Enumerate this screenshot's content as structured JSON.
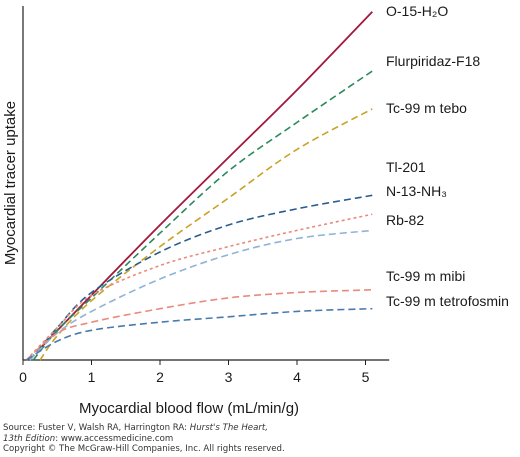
{
  "chart_data": {
    "type": "line",
    "title": "",
    "xlabel": "Myocardial blood flow (mL/min/g)",
    "ylabel": "Myocardial tracer uptake",
    "xlim": [
      0,
      5.2
    ],
    "xticks": [
      "0",
      "1",
      "2",
      "3",
      "4",
      "5"
    ],
    "grid": false,
    "legend": "inline labels at right end of each curve",
    "series": [
      {
        "name": "O-15-H₂O",
        "color": "#a3183c",
        "dash": "solid",
        "x": [
          0.2,
          1,
          2,
          3,
          4,
          5.1
        ],
        "y": [
          0.03,
          0.24,
          0.5,
          0.75,
          1.0,
          1.29
        ]
      },
      {
        "name": "Flurpiridaz-F18",
        "color": "#2b8a5a",
        "dash": "dashed",
        "x": [
          0.15,
          0.5,
          1,
          2,
          3,
          4,
          5.1
        ],
        "y": [
          0.0,
          0.11,
          0.23,
          0.47,
          0.7,
          0.88,
          1.07
        ]
      },
      {
        "name": "Tc-99 m tebo",
        "color": "#c9a227",
        "dash": "dashed",
        "x": [
          0.25,
          0.5,
          1,
          2,
          3,
          4,
          5.1
        ],
        "y": [
          0.0,
          0.09,
          0.22,
          0.42,
          0.6,
          0.78,
          0.93
        ]
      },
      {
        "name": "Tl-201",
        "color": "#2a5d8f",
        "dash": "dashed",
        "x": [
          0.1,
          0.5,
          1,
          2,
          3,
          4,
          5.1
        ],
        "y": [
          0.0,
          0.12,
          0.25,
          0.4,
          0.5,
          0.56,
          0.61
        ]
      },
      {
        "name": "N-13-NH₃",
        "color": "#e88b7d",
        "dash": "dotted",
        "x": [
          0.05,
          0.5,
          1,
          2,
          3,
          4,
          5.1
        ],
        "y": [
          0.0,
          0.12,
          0.24,
          0.35,
          0.42,
          0.48,
          0.54
        ]
      },
      {
        "name": "Rb-82",
        "color": "#8fb3d9",
        "dash": "dashed",
        "x": [
          0.1,
          0.5,
          1,
          2,
          3,
          4,
          5.1
        ],
        "y": [
          0.0,
          0.1,
          0.18,
          0.3,
          0.39,
          0.45,
          0.48
        ]
      },
      {
        "name": "Tc-99 m mibi",
        "color": "#e88b7d",
        "dash": "dashed",
        "x": [
          0.05,
          0.5,
          1,
          2,
          3,
          4,
          5.1
        ],
        "y": [
          0.0,
          0.1,
          0.14,
          0.19,
          0.23,
          0.25,
          0.26
        ]
      },
      {
        "name": "Tc-99 m tetrofosmin",
        "color": "#4a7aab",
        "dash": "dashed",
        "x": [
          0.05,
          0.5,
          1,
          2,
          3,
          4,
          5.1
        ],
        "y": [
          0.0,
          0.07,
          0.11,
          0.14,
          0.16,
          0.18,
          0.19
        ]
      }
    ]
  },
  "source": {
    "line1_prefix": "Source: Fuster V, Walsh RA, Harrington RA: ",
    "line1_italic": "Hurst's The Heart,",
    "line2_italic": "13th Edition",
    "line2_suffix": ": www.accessmedicine.com",
    "line3": "Copyright © The McGraw-Hill Companies, Inc. All rights reserved."
  }
}
